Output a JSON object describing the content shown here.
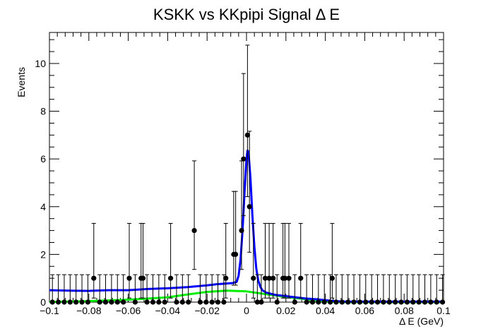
{
  "chart_data": {
    "type": "scatter",
    "title": "KSKK vs KKpipi Signal Δ E",
    "xlabel": "Δ E (GeV)",
    "ylabel": "Events",
    "xlim": [
      -0.1,
      0.1
    ],
    "ylim": [
      0,
      11.3
    ],
    "grid": false,
    "legend": "none",
    "x_ticks": [
      "−0.1",
      "−0.08",
      "−0.06",
      "−0.04",
      "−0.02",
      "0",
      "0.02",
      "0.04",
      "0.06",
      "0.08",
      "0.1"
    ],
    "y_ticks": [
      "0",
      "2",
      "4",
      "6",
      "8",
      "10"
    ],
    "data_points": {
      "name": "",
      "color": "#000000",
      "x": [
        -0.0985,
        -0.0955,
        -0.0925,
        -0.0895,
        -0.0865,
        -0.0835,
        -0.0805,
        -0.0775,
        -0.0745,
        -0.0715,
        -0.0685,
        -0.0655,
        -0.0625,
        -0.0595,
        -0.0565,
        -0.0535,
        -0.0525,
        -0.0505,
        -0.0475,
        -0.0445,
        -0.0415,
        -0.0385,
        -0.0355,
        -0.0325,
        -0.0295,
        -0.0265,
        -0.0235,
        -0.0205,
        -0.0175,
        -0.0145,
        -0.0115,
        -0.0105,
        -0.0065,
        -0.0055,
        -0.0025,
        -0.0015,
        0.0005,
        0.0015,
        0.0035,
        0.0055,
        0.0075,
        0.0095,
        0.0115,
        0.0135,
        0.0155,
        0.0185,
        0.0195,
        0.0215,
        0.0245,
        0.0275,
        0.0305,
        0.0335,
        0.0365,
        0.0395,
        0.0425,
        0.0435,
        0.0455,
        0.0485,
        0.0515,
        0.0545,
        0.0575,
        0.0605,
        0.0635,
        0.0665,
        0.0695,
        0.0725,
        0.0755,
        0.0785,
        0.0815,
        0.0845,
        0.0875,
        0.0905,
        0.0935,
        0.0965,
        0.0995
      ],
      "y": [
        0,
        0,
        0,
        0,
        0,
        0,
        0,
        1,
        0,
        0,
        0,
        0,
        0,
        1,
        0,
        1,
        1,
        0,
        0,
        0,
        0,
        1,
        0,
        0,
        0,
        3,
        0,
        0,
        0,
        0,
        0,
        1,
        2,
        2,
        3,
        6,
        7,
        4,
        1,
        0,
        0,
        1,
        1,
        1,
        0,
        1,
        1,
        1,
        0,
        1,
        0,
        0,
        0,
        0,
        0,
        1,
        0,
        0,
        0,
        0,
        0,
        0,
        0,
        0,
        0,
        0,
        0,
        0,
        0,
        0,
        0,
        0,
        0,
        0,
        0
      ],
      "yerr_up": [
        1.15,
        1.15,
        1.15,
        1.15,
        1.15,
        1.15,
        1.15,
        2.3,
        1.15,
        1.15,
        1.15,
        1.15,
        1.15,
        2.3,
        1.15,
        2.3,
        2.3,
        1.15,
        1.15,
        1.15,
        1.15,
        2.3,
        1.15,
        1.15,
        1.15,
        2.92,
        1.15,
        1.15,
        1.15,
        1.15,
        1.15,
        2.3,
        2.64,
        2.64,
        2.92,
        3.58,
        3.77,
        3.16,
        2.3,
        1.15,
        1.15,
        2.3,
        2.3,
        2.3,
        1.15,
        2.3,
        2.3,
        2.3,
        1.15,
        2.3,
        1.15,
        1.15,
        1.15,
        1.15,
        1.15,
        2.3,
        1.15,
        1.15,
        1.15,
        1.15,
        1.15,
        1.15,
        1.15,
        1.15,
        1.15,
        1.15,
        1.15,
        1.15,
        1.15,
        1.15,
        1.15,
        1.15,
        1.15,
        1.15,
        1.15
      ],
      "yerr_down": [
        0,
        0,
        0,
        0,
        0,
        0,
        0,
        0.83,
        0,
        0,
        0,
        0,
        0,
        0.83,
        0,
        0.83,
        0.83,
        0,
        0,
        0,
        0,
        0.83,
        0,
        0,
        0,
        1.63,
        0,
        0,
        0,
        0,
        0,
        0.83,
        1.29,
        1.29,
        1.63,
        2.38,
        2.58,
        1.91,
        0.83,
        0,
        0,
        0.83,
        0.83,
        0.83,
        0,
        0.83,
        0.83,
        0.83,
        0,
        0.83,
        0,
        0,
        0,
        0,
        0,
        0.83,
        0,
        0,
        0,
        0,
        0,
        0,
        0,
        0,
        0,
        0,
        0,
        0,
        0,
        0,
        0,
        0,
        0,
        0,
        0
      ]
    },
    "series": [
      {
        "name": "",
        "color": "#0000ff",
        "x": [
          -0.1,
          -0.09,
          -0.08,
          -0.07,
          -0.06,
          -0.05,
          -0.04,
          -0.03,
          -0.02,
          -0.015,
          -0.01,
          -0.007,
          -0.005,
          -0.004,
          -0.003,
          -0.002,
          -0.001,
          0,
          0.0005,
          0.001,
          0.002,
          0.003,
          0.004,
          0.005,
          0.006,
          0.007,
          0.008,
          0.01,
          0.015,
          0.02,
          0.025,
          0.03,
          0.035,
          0.04,
          0.045,
          0.05,
          0.06,
          0.07,
          0.08,
          0.09,
          0.1
        ],
        "y": [
          0.5,
          0.48,
          0.47,
          0.5,
          0.5,
          0.55,
          0.58,
          0.63,
          0.7,
          0.75,
          0.78,
          0.8,
          0.85,
          1.1,
          1.8,
          3.0,
          4.6,
          6.0,
          6.35,
          6.3,
          5.2,
          3.6,
          2.3,
          1.4,
          0.9,
          0.65,
          0.5,
          0.4,
          0.3,
          0.25,
          0.2,
          0.15,
          0.12,
          0.08,
          0.04,
          0.02,
          0.02,
          0.02,
          0.02,
          0.02,
          0.02
        ]
      },
      {
        "name": "",
        "color": "#00ee00",
        "x": [
          -0.1,
          -0.08,
          -0.06,
          -0.04,
          -0.03,
          -0.02,
          -0.01,
          0,
          0.01,
          0.02,
          0.03,
          0.035,
          0.04,
          0.045,
          0.05,
          0.06,
          0.07,
          0.08,
          0.09,
          0.1
        ],
        "y": [
          0.01,
          0.04,
          0.1,
          0.2,
          0.32,
          0.43,
          0.48,
          0.45,
          0.33,
          0.22,
          0.12,
          0.07,
          0.03,
          0.01,
          0,
          0,
          0,
          0,
          0,
          0
        ]
      }
    ]
  }
}
